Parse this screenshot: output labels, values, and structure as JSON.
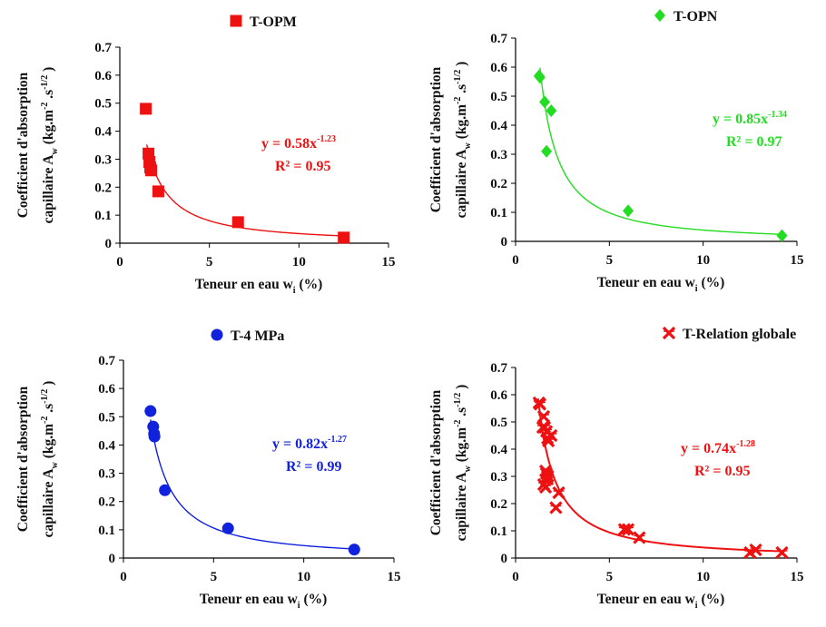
{
  "chart_data": [
    {
      "type": "scatter",
      "legend": "T-OPM",
      "color": "#ee1111",
      "marker": "square",
      "points": {
        "x": [
          1.45,
          1.6,
          1.65,
          1.7,
          1.75,
          2.15,
          6.6,
          12.5
        ],
        "y": [
          0.48,
          0.32,
          0.29,
          0.27,
          0.26,
          0.185,
          0.075,
          0.02
        ]
      },
      "fit": {
        "a": 0.58,
        "b": -1.23,
        "x_range": [
          1.5,
          12.5
        ]
      },
      "equation": {
        "lhs": "y = 0.58x",
        "exp": "-1.23",
        "r2": "R² = 0.95"
      },
      "xlabel": {
        "main": "Teneur en eau w",
        "sub": "i",
        "tail": " (%)"
      },
      "ylabel": {
        "line1": "Coefficient d'absorption",
        "line2_a": "capillaire A",
        "line2_sub": "w",
        "line2_b": " (kg.m",
        "sup1": "-2",
        "line2_c": " .s",
        "sup2": "-1/2",
        "line2_d": " )"
      },
      "xlim": [
        0,
        15
      ],
      "ylim": [
        0,
        0.7
      ],
      "xticks": [
        0,
        5,
        10,
        15
      ],
      "yticks": [
        "0",
        "0.1",
        "0.2",
        "0.3",
        "0.4",
        "0.5",
        "0.6",
        "0.7"
      ]
    },
    {
      "type": "scatter",
      "legend": "T-OPN",
      "color": "#22dd22",
      "marker": "diamond",
      "points": {
        "x": [
          1.25,
          1.3,
          1.55,
          1.65,
          1.9,
          6.0,
          14.2
        ],
        "y": [
          0.57,
          0.565,
          0.48,
          0.31,
          0.45,
          0.105,
          0.02
        ]
      },
      "fit": {
        "a": 0.85,
        "b": -1.34,
        "x_range": [
          1.3,
          14.2
        ]
      },
      "equation": {
        "lhs": "y = 0.85x",
        "exp": "-1.34",
        "r2": "R² = 0.97"
      },
      "xlabel": {
        "main": "Teneur en eau w",
        "sub": "i",
        "tail": " (%)"
      },
      "ylabel": {
        "line1": "Coefficient d'absorption",
        "line2_a": "capillaire A",
        "line2_sub": "w",
        "line2_b": " (kg.m",
        "sup1": "-2",
        "line2_c": " .s",
        "sup2": "-1/2",
        "line2_d": " )"
      },
      "xlim": [
        0,
        15
      ],
      "ylim": [
        0,
        0.7
      ],
      "xticks": [
        0,
        5,
        10,
        15
      ],
      "yticks": [
        "0",
        "0.1",
        "0.2",
        "0.3",
        "0.4",
        "0.5",
        "0.6",
        "0.7"
      ]
    },
    {
      "type": "scatter",
      "legend": "T-4 MPa",
      "color": "#1122dd",
      "marker": "circle",
      "points": {
        "x": [
          1.5,
          1.65,
          1.7,
          1.72,
          2.3,
          5.8,
          12.8
        ],
        "y": [
          0.52,
          0.465,
          0.44,
          0.43,
          0.24,
          0.105,
          0.03
        ]
      },
      "fit": {
        "a": 0.82,
        "b": -1.27,
        "x_range": [
          1.5,
          12.8
        ]
      },
      "equation": {
        "lhs": "y = 0.82x",
        "exp": "-1.27",
        "r2": "R² = 0.99"
      },
      "xlabel": {
        "main": "Teneur en eau w",
        "sub": "i",
        "tail": " (%)"
      },
      "ylabel": {
        "line1": "Coefficient d'absorption",
        "line2_a": "capillaire A",
        "line2_sub": "w",
        "line2_b": " (kg.m",
        "sup1": "-2",
        "line2_c": " .s",
        "sup2": "-1/2",
        "line2_d": " )"
      },
      "xlim": [
        0,
        15
      ],
      "ylim": [
        0,
        0.7
      ],
      "xticks": [
        0,
        5,
        10,
        15
      ],
      "yticks": [
        "0",
        "0.1",
        "0.2",
        "0.3",
        "0.4",
        "0.5",
        "0.6",
        "0.7"
      ]
    },
    {
      "type": "scatter",
      "legend": "T-Relation globale",
      "color": "#ee1111",
      "marker": "cross",
      "points": {
        "x": [
          1.25,
          1.3,
          1.45,
          1.5,
          1.55,
          1.6,
          1.65,
          1.65,
          1.7,
          1.7,
          1.75,
          1.9,
          1.5,
          1.6,
          2.15,
          2.3,
          1.72,
          5.8,
          6.0,
          6.6,
          12.5,
          12.8,
          14.2
        ],
        "y": [
          0.57,
          0.565,
          0.48,
          0.52,
          0.48,
          0.32,
          0.465,
          0.31,
          0.29,
          0.44,
          0.43,
          0.45,
          0.27,
          0.26,
          0.185,
          0.24,
          0.3,
          0.105,
          0.105,
          0.075,
          0.02,
          0.03,
          0.02
        ]
      },
      "fit": {
        "a": 0.74,
        "b": -1.28,
        "x_range": [
          1.2,
          14.2
        ]
      },
      "equation": {
        "lhs": "y = 0.74x",
        "exp": "-1.28",
        "r2": "R² = 0.95"
      },
      "xlabel": {
        "main": "Teneur en eau w",
        "sub": "i",
        "tail": " (%)"
      },
      "ylabel": {
        "line1": "Coefficient d'absorption",
        "line2_a": "capillaire A",
        "line2_sub": "w",
        "line2_b": " (kg.m",
        "sup1": "-2",
        "line2_c": " .s",
        "sup2": "-1/2",
        "line2_d": " )"
      },
      "xlim": [
        0,
        15
      ],
      "ylim": [
        0,
        0.7
      ],
      "xticks": [
        0,
        5,
        10,
        15
      ],
      "yticks": [
        "0",
        "0.1",
        "0.2",
        "0.3",
        "0.4",
        "0.5",
        "0.6",
        "0.7"
      ]
    }
  ]
}
